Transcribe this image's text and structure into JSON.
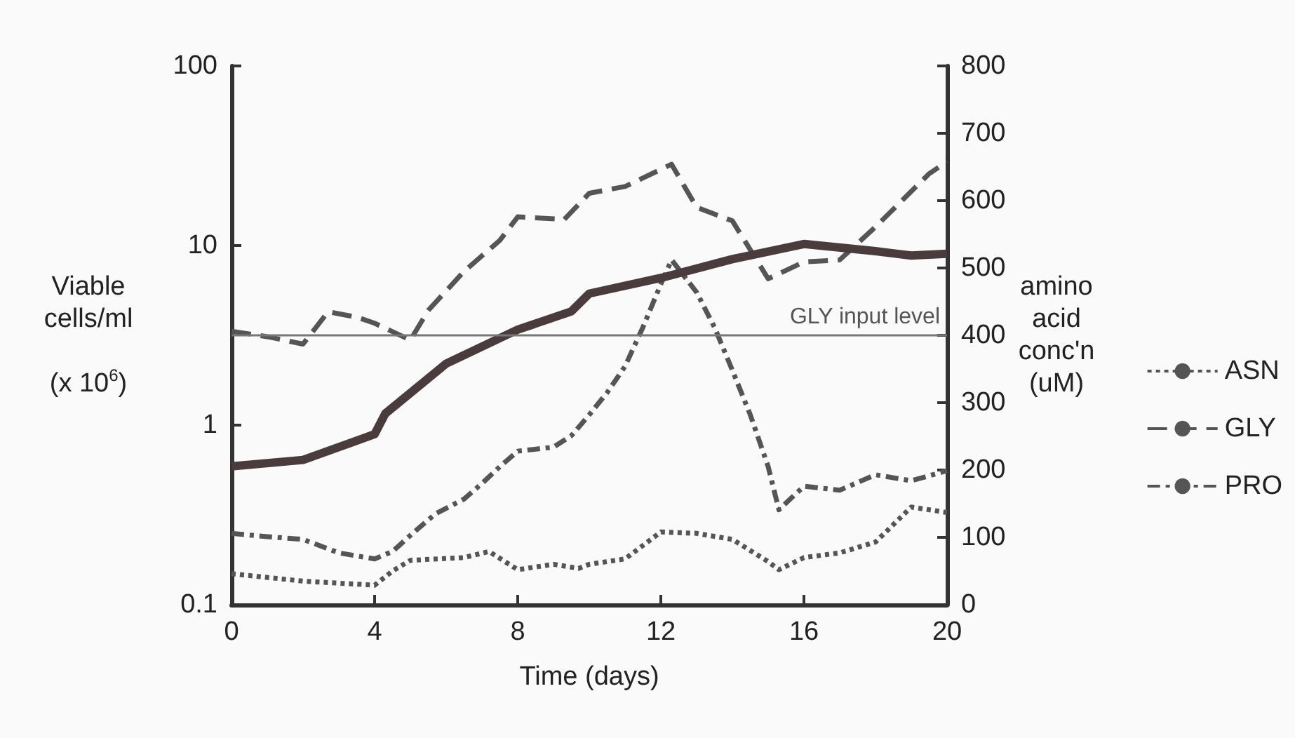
{
  "chart_data": {
    "type": "line",
    "xlabel": "Time (days)",
    "ylabel": "Viable cells/ml (x 10$^{6}$)",
    "y2label": "amino acid conc'n (uM)",
    "xlim": [
      0,
      20
    ],
    "xticks": [
      0,
      4,
      8,
      12,
      16,
      20
    ],
    "log": "y",
    "ylim": [
      0.1,
      100
    ],
    "yticks": [
      0.1,
      1,
      10,
      100
    ],
    "y2lim": [
      0,
      800
    ],
    "y2ticks": [
      0,
      100,
      200,
      300,
      400,
      500,
      600,
      700,
      800
    ],
    "grid": false,
    "marker": "none",
    "legend": "right",
    "ref_lines": [
      {
        "axis": "y2",
        "value": 400,
        "label": "GLY input level",
        "color": "#777777",
        "line_style": "solid"
      }
    ],
    "series": [
      {
        "color": "#4a3c3c",
        "line_style": "solid",
        "x": [
          0,
          2,
          4,
          4.3,
          6,
          8,
          9.5,
          10,
          12,
          14,
          16,
          18,
          19,
          20
        ],
        "values": [
          0.59,
          0.64,
          0.89,
          1.16,
          2.2,
          3.4,
          4.3,
          5.4,
          6.6,
          8.4,
          10.2,
          9.3,
          8.8,
          9.0
        ]
      },
      {
        "name": "ASN",
        "axis": "y2",
        "color": "#555555",
        "line_style": "dotted",
        "x": [
          0,
          2,
          4,
          4.5,
          5,
          6.5,
          7.2,
          8,
          9,
          9.7,
          10,
          11,
          12,
          13,
          14,
          15,
          15.3,
          16,
          17,
          18,
          19,
          20
        ],
        "values": [
          46,
          35,
          29,
          50,
          66,
          70,
          79,
          52,
          60,
          54,
          60,
          68,
          108,
          106,
          97,
          64,
          52,
          70,
          77,
          93,
          145,
          137
        ]
      },
      {
        "name": "GLY",
        "axis": "y2",
        "color": "#555555",
        "line_style": "dashed",
        "x": [
          0,
          1,
          2,
          2.7,
          3.5,
          4,
          4.4,
          5,
          5.5,
          6.5,
          7.5,
          8,
          9.3,
          10,
          11,
          12.3,
          13,
          14,
          15,
          16,
          17,
          18,
          19.5,
          20
        ],
        "values": [
          406,
          398,
          387,
          435,
          427,
          418,
          408,
          393,
          437,
          495,
          541,
          576,
          572,
          611,
          621,
          654,
          590,
          570,
          484,
          509,
          512,
          561,
          640,
          658
        ]
      },
      {
        "name": "PRO",
        "axis": "y2",
        "color": "#555555",
        "line_style": "dashdot",
        "x": [
          0,
          1,
          2,
          3,
          4,
          4.5,
          5,
          5.7,
          6.5,
          7,
          7.5,
          8,
          9,
          9.5,
          10,
          10.5,
          11,
          11.5,
          12,
          12.3,
          13,
          13.5,
          14,
          14.5,
          15,
          15.3,
          16,
          17,
          18,
          19,
          20
        ],
        "values": [
          106,
          101,
          97,
          77,
          68,
          79,
          103,
          135,
          157,
          180,
          205,
          228,
          234,
          251,
          282,
          315,
          354,
          412,
          476,
          512,
          464,
          412,
          348,
          282,
          205,
          141,
          176,
          170,
          193,
          184,
          199
        ]
      }
    ]
  }
}
